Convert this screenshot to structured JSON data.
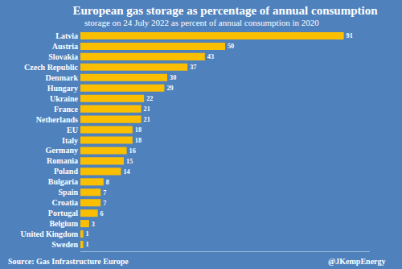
{
  "chart_data": {
    "type": "bar",
    "title": "European gas storage as percentage of annual consumption",
    "subtitle": "storage on 24 July 2022 as percent of annual consumption in 2020",
    "categories": [
      "Latvia",
      "Austria",
      "Slovakia",
      "Czech Republic",
      "Denmark",
      "Hungary",
      "Ukraine",
      "France",
      "Netherlands",
      "EU",
      "Italy",
      "Germany",
      "Romania",
      "Poland",
      "Bulgaria",
      "Spain",
      "Croatia",
      "Portugal",
      "Belgium",
      "United Kingdom",
      "Sweden"
    ],
    "values": [
      91,
      50,
      43,
      37,
      30,
      29,
      22,
      21,
      21,
      18,
      18,
      16,
      15,
      14,
      8,
      7,
      7,
      6,
      3,
      1,
      1
    ],
    "color": "#fcbf00",
    "orientation": "horizontal",
    "data_labels": true,
    "xlim": [
      0,
      100
    ],
    "tick_labels": "y",
    "grid": false,
    "annotations": [
      "Source: Gas Infrastructure Europe",
      "@JKempEnergy"
    ]
  }
}
